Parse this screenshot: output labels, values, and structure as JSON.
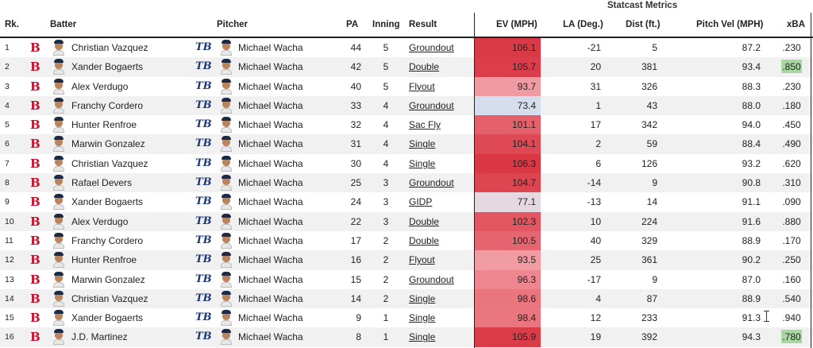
{
  "header": {
    "statcast_group": "Statcast Metrics",
    "columns": {
      "rank": "Rk.",
      "batter": "Batter",
      "pitcher": "Pitcher",
      "pa": "PA",
      "inning": "Inning",
      "result": "Result",
      "ev": "EV (MPH)",
      "la": "LA (Deg.)",
      "dist": "Dist (ft.)",
      "pitch_vel": "Pitch Vel (MPH)",
      "xba": "xBA"
    }
  },
  "colors": {
    "ev_high": "#d7303d",
    "ev_mid": "#f09098",
    "ev_low": "#d6dded",
    "xba_highlight": "#a8d8a0",
    "red_sox": "#c8102e",
    "rays": "#1a3a7a"
  },
  "icons": {
    "batter_team_logo": "red-sox-logo-icon",
    "pitcher_team_logo": "rays-logo-icon",
    "headshot": "player-headshot-icon"
  },
  "rows": [
    {
      "rank": "1",
      "batter": "Christian Vazquez",
      "pitcher": "Michael Wacha",
      "pa": "44",
      "inning": "5",
      "result": "Groundout",
      "ev": "106.1",
      "ev_level": 0.95,
      "la": "-21",
      "dist": "5",
      "pitch_vel": "87.2",
      "xba": ".230",
      "xba_hi": false
    },
    {
      "rank": "2",
      "batter": "Xander Bogaerts",
      "pitcher": "Michael Wacha",
      "pa": "42",
      "inning": "5",
      "result": "Double",
      "ev": "105.7",
      "ev_level": 0.93,
      "la": "20",
      "dist": "381",
      "pitch_vel": "93.4",
      "xba": ".850",
      "xba_hi": true
    },
    {
      "rank": "3",
      "batter": "Alex Verdugo",
      "pitcher": "Michael Wacha",
      "pa": "40",
      "inning": "5",
      "result": "Flyout",
      "ev": "93.7",
      "ev_level": 0.45,
      "la": "31",
      "dist": "326",
      "pitch_vel": "88.3",
      "xba": ".230",
      "xba_hi": false
    },
    {
      "rank": "4",
      "batter": "Franchy Cordero",
      "pitcher": "Michael Wacha",
      "pa": "33",
      "inning": "4",
      "result": "Groundout",
      "ev": "73.4",
      "ev_level": 0.0,
      "la": "1",
      "dist": "43",
      "pitch_vel": "88.0",
      "xba": ".180",
      "xba_hi": false
    },
    {
      "rank": "5",
      "batter": "Hunter Renfroe",
      "pitcher": "Michael Wacha",
      "pa": "32",
      "inning": "4",
      "result": "Sac Fly",
      "ev": "101.1",
      "ev_level": 0.75,
      "la": "17",
      "dist": "342",
      "pitch_vel": "94.0",
      "xba": ".450",
      "xba_hi": false
    },
    {
      "rank": "6",
      "batter": "Marwin Gonzalez",
      "pitcher": "Michael Wacha",
      "pa": "31",
      "inning": "4",
      "result": "Single",
      "ev": "104.1",
      "ev_level": 0.87,
      "la": "2",
      "dist": "59",
      "pitch_vel": "88.4",
      "xba": ".490",
      "xba_hi": false
    },
    {
      "rank": "7",
      "batter": "Christian Vazquez",
      "pitcher": "Michael Wacha",
      "pa": "30",
      "inning": "4",
      "result": "Single",
      "ev": "106.3",
      "ev_level": 0.96,
      "la": "6",
      "dist": "126",
      "pitch_vel": "93.2",
      "xba": ".620",
      "xba_hi": false
    },
    {
      "rank": "8",
      "batter": "Rafael Devers",
      "pitcher": "Michael Wacha",
      "pa": "25",
      "inning": "3",
      "result": "Groundout",
      "ev": "104.7",
      "ev_level": 0.89,
      "la": "-14",
      "dist": "9",
      "pitch_vel": "90.8",
      "xba": ".310",
      "xba_hi": false
    },
    {
      "rank": "9",
      "batter": "Xander Bogaerts",
      "pitcher": "Michael Wacha",
      "pa": "24",
      "inning": "3",
      "result": "GIDP",
      "ev": "77.1",
      "ev_level": 0.08,
      "la": "-13",
      "dist": "14",
      "pitch_vel": "91.1",
      "xba": ".090",
      "xba_hi": false
    },
    {
      "rank": "10",
      "batter": "Alex Verdugo",
      "pitcher": "Michael Wacha",
      "pa": "22",
      "inning": "3",
      "result": "Double",
      "ev": "102.3",
      "ev_level": 0.8,
      "la": "10",
      "dist": "224",
      "pitch_vel": "91.6",
      "xba": ".880",
      "xba_hi": false
    },
    {
      "rank": "11",
      "batter": "Franchy Cordero",
      "pitcher": "Michael Wacha",
      "pa": "17",
      "inning": "2",
      "result": "Double",
      "ev": "100.5",
      "ev_level": 0.72,
      "la": "40",
      "dist": "329",
      "pitch_vel": "88.9",
      "xba": ".170",
      "xba_hi": false
    },
    {
      "rank": "12",
      "batter": "Hunter Renfroe",
      "pitcher": "Michael Wacha",
      "pa": "16",
      "inning": "2",
      "result": "Flyout",
      "ev": "93.5",
      "ev_level": 0.44,
      "la": "25",
      "dist": "361",
      "pitch_vel": "90.2",
      "xba": ".250",
      "xba_hi": false
    },
    {
      "rank": "13",
      "batter": "Marwin Gonzalez",
      "pitcher": "Michael Wacha",
      "pa": "15",
      "inning": "2",
      "result": "Groundout",
      "ev": "96.3",
      "ev_level": 0.55,
      "la": "-17",
      "dist": "9",
      "pitch_vel": "87.0",
      "xba": ".160",
      "xba_hi": false
    },
    {
      "rank": "14",
      "batter": "Christian Vazquez",
      "pitcher": "Michael Wacha",
      "pa": "14",
      "inning": "2",
      "result": "Single",
      "ev": "98.6",
      "ev_level": 0.64,
      "la": "4",
      "dist": "87",
      "pitch_vel": "88.9",
      "xba": ".540",
      "xba_hi": false
    },
    {
      "rank": "15",
      "batter": "Xander Bogaerts",
      "pitcher": "Michael Wacha",
      "pa": "9",
      "inning": "1",
      "result": "Single",
      "ev": "98.4",
      "ev_level": 0.63,
      "la": "12",
      "dist": "233",
      "pitch_vel": "91.3",
      "xba": ".940",
      "xba_hi": false
    },
    {
      "rank": "16",
      "batter": "J.D. Martinez",
      "pitcher": "Michael Wacha",
      "pa": "8",
      "inning": "1",
      "result": "Single",
      "ev": "105.9",
      "ev_level": 0.94,
      "la": "19",
      "dist": "392",
      "pitch_vel": "94.3",
      "xba": ".780",
      "xba_hi": true
    }
  ]
}
